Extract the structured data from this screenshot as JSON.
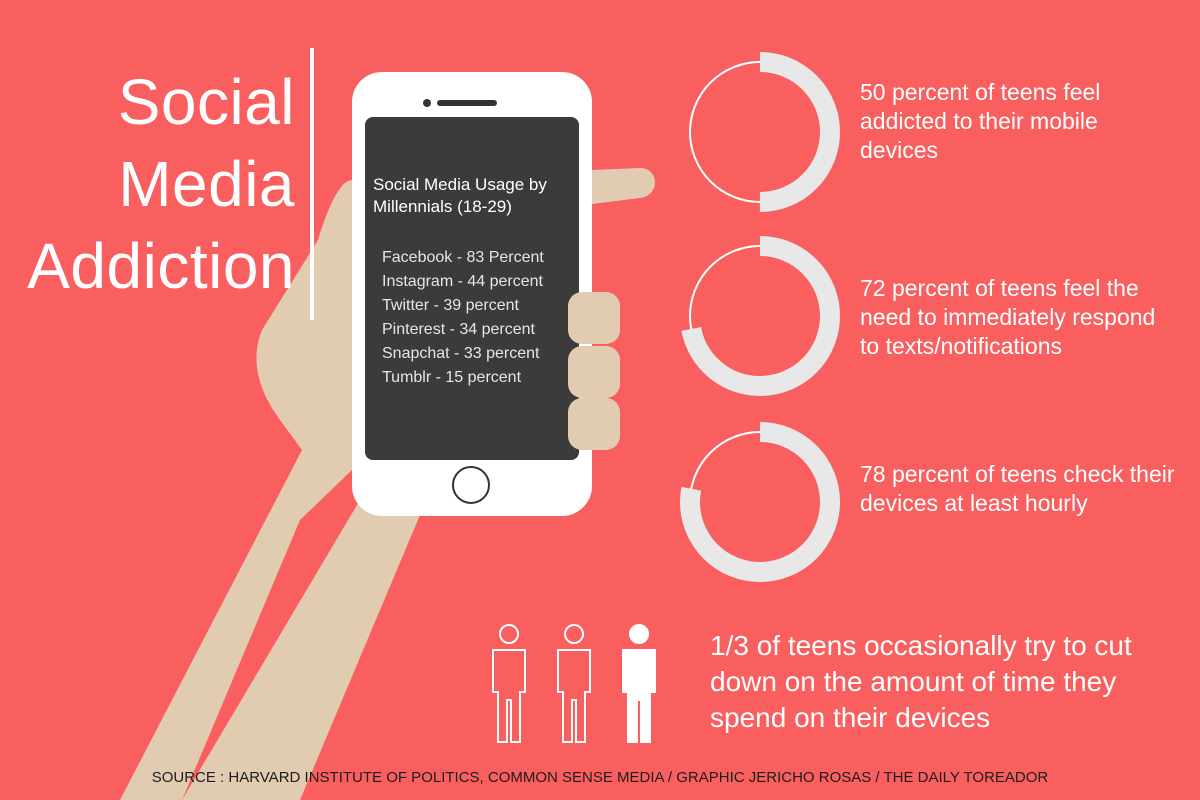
{
  "title": {
    "line1": "Social",
    "line2": "Media",
    "line3": "Addiction"
  },
  "phone": {
    "heading": "Social Media Usage by Millennials (18-29)",
    "usage": [
      "Facebook - 83 Percent",
      "Instagram - 44 percent",
      "Twitter - 39 percent",
      "Pinterest - 34 percent",
      "Snapchat - 33 percent",
      "Tumblr - 15 percent"
    ]
  },
  "stats": [
    {
      "percent": 50,
      "text": "50 percent of teens feel addicted to their mobile devices"
    },
    {
      "percent": 72,
      "text": "72 percent of teens feel the need to immediately respond to texts/notifications"
    },
    {
      "percent": 78,
      "text": "78 percent of teens check their devices at least hourly"
    }
  ],
  "people": {
    "highlighted": 1,
    "total": 3,
    "text": "1/3 of teens occasionally try to cut down on the amount of time they spend on their devices"
  },
  "source": "SOURCE : HARVARD INSTITUTE OF POLITICS, COMMON SENSE MEDIA / GRAPHIC JERICHO ROSAS / THE DAILY TOREADOR",
  "colors": {
    "background": "#fa5f5f",
    "ring": "#e8e8e8",
    "skin": "#e1cbb1",
    "screen": "#3b3b3b"
  },
  "icons": [
    "person-outline-icon",
    "person-outline-icon",
    "person-filled-icon"
  ]
}
